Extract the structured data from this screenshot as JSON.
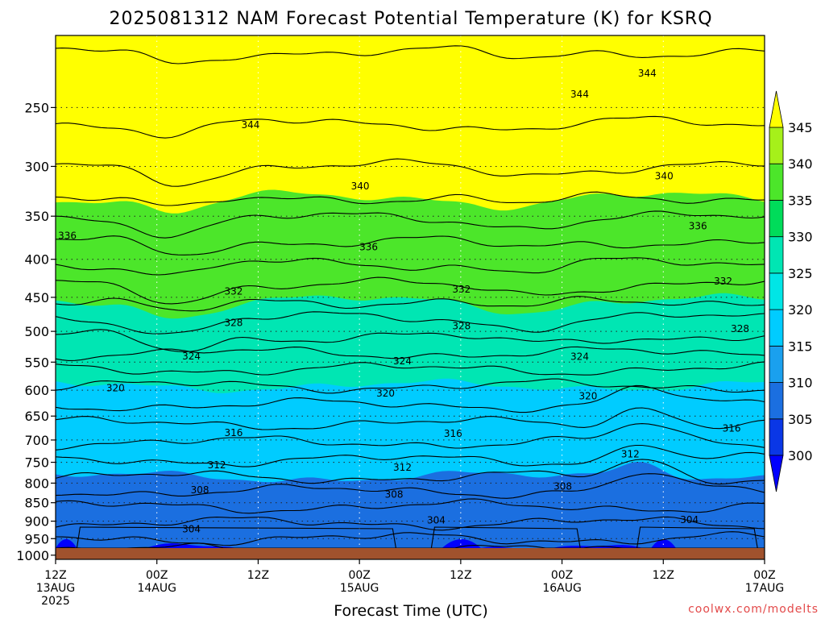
{
  "chart_data": {
    "type": "heatmap",
    "title": "2025081312 NAM Forecast Potential Temperature (K) for KSRQ",
    "xlabel": "Forecast Time (UTC)",
    "ylabel": "",
    "x_ticks": [
      {
        "hours": 0,
        "line1": "12Z",
        "line2": "13AUG",
        "line3": "2025"
      },
      {
        "hours": 12,
        "line1": "00Z",
        "line2": "14AUG",
        "line3": ""
      },
      {
        "hours": 24,
        "line1": "12Z",
        "line2": "",
        "line3": ""
      },
      {
        "hours": 36,
        "line1": "00Z",
        "line2": "15AUG",
        "line3": ""
      },
      {
        "hours": 48,
        "line1": "12Z",
        "line2": "",
        "line3": ""
      },
      {
        "hours": 60,
        "line1": "00Z",
        "line2": "16AUG",
        "line3": ""
      },
      {
        "hours": 72,
        "line1": "12Z",
        "line2": "",
        "line3": ""
      },
      {
        "hours": 84,
        "line1": "00Z",
        "line2": "17AUG",
        "line3": ""
      }
    ],
    "y_ticks": [
      "250",
      "300",
      "350",
      "400",
      "450",
      "500",
      "550",
      "600",
      "650",
      "700",
      "750",
      "800",
      "850",
      "900",
      "950",
      "1000"
    ],
    "y_values_hPa": [
      250,
      300,
      350,
      400,
      450,
      500,
      550,
      600,
      650,
      700,
      750,
      800,
      850,
      900,
      950,
      1000
    ],
    "y_range_hPa": [
      1013,
      200
    ],
    "colorbar": {
      "levels": [
        "300",
        "305",
        "310",
        "315",
        "320",
        "325",
        "330",
        "335",
        "340",
        "345"
      ],
      "colors": [
        "#0000ff",
        "#0a37e6",
        "#1b6fe0",
        "#1aa0ee",
        "#00ccff",
        "#00e6e6",
        "#00e6b3",
        "#00dc5a",
        "#4ce62a",
        "#a6f01a",
        "#ffff00"
      ]
    },
    "isotherm_labels": [
      {
        "x": 9,
        "p": 163,
        "text": "344"
      },
      {
        "x": 69,
        "p": 225,
        "text": "344"
      },
      {
        "x": 61,
        "p": 240,
        "text": "344"
      },
      {
        "x": 22,
        "p": 264,
        "text": "344"
      },
      {
        "x": 35,
        "p": 319,
        "text": "340"
      },
      {
        "x": 71,
        "p": 309,
        "text": "340"
      },
      {
        "x": 0.3,
        "p": 372,
        "text": "336"
      },
      {
        "x": 36,
        "p": 385,
        "text": "336"
      },
      {
        "x": 75,
        "p": 361,
        "text": "336"
      },
      {
        "x": 20,
        "p": 442,
        "text": "332"
      },
      {
        "x": 47,
        "p": 439,
        "text": "332"
      },
      {
        "x": 78,
        "p": 428,
        "text": "332"
      },
      {
        "x": 20,
        "p": 487,
        "text": "328"
      },
      {
        "x": 47,
        "p": 492,
        "text": "328"
      },
      {
        "x": 80,
        "p": 496,
        "text": "328"
      },
      {
        "x": 15,
        "p": 540,
        "text": "324"
      },
      {
        "x": 40,
        "p": 548,
        "text": "324"
      },
      {
        "x": 61,
        "p": 541,
        "text": "324"
      },
      {
        "x": 6,
        "p": 596,
        "text": "320"
      },
      {
        "x": 38,
        "p": 606,
        "text": "320"
      },
      {
        "x": 62,
        "p": 611,
        "text": "320"
      },
      {
        "x": 20,
        "p": 685,
        "text": "316"
      },
      {
        "x": 46,
        "p": 686,
        "text": "316"
      },
      {
        "x": 79,
        "p": 675,
        "text": "316"
      },
      {
        "x": 18,
        "p": 756,
        "text": "312"
      },
      {
        "x": 40,
        "p": 762,
        "text": "312"
      },
      {
        "x": 67,
        "p": 731,
        "text": "312"
      },
      {
        "x": 16,
        "p": 817,
        "text": "308"
      },
      {
        "x": 39,
        "p": 829,
        "text": "308"
      },
      {
        "x": 59,
        "p": 808,
        "text": "308"
      },
      {
        "x": 15,
        "p": 922,
        "text": "304"
      },
      {
        "x": 44,
        "p": 897,
        "text": "304"
      },
      {
        "x": 74,
        "p": 896,
        "text": "304"
      }
    ]
  },
  "credit": "coolwx.com/modelts"
}
